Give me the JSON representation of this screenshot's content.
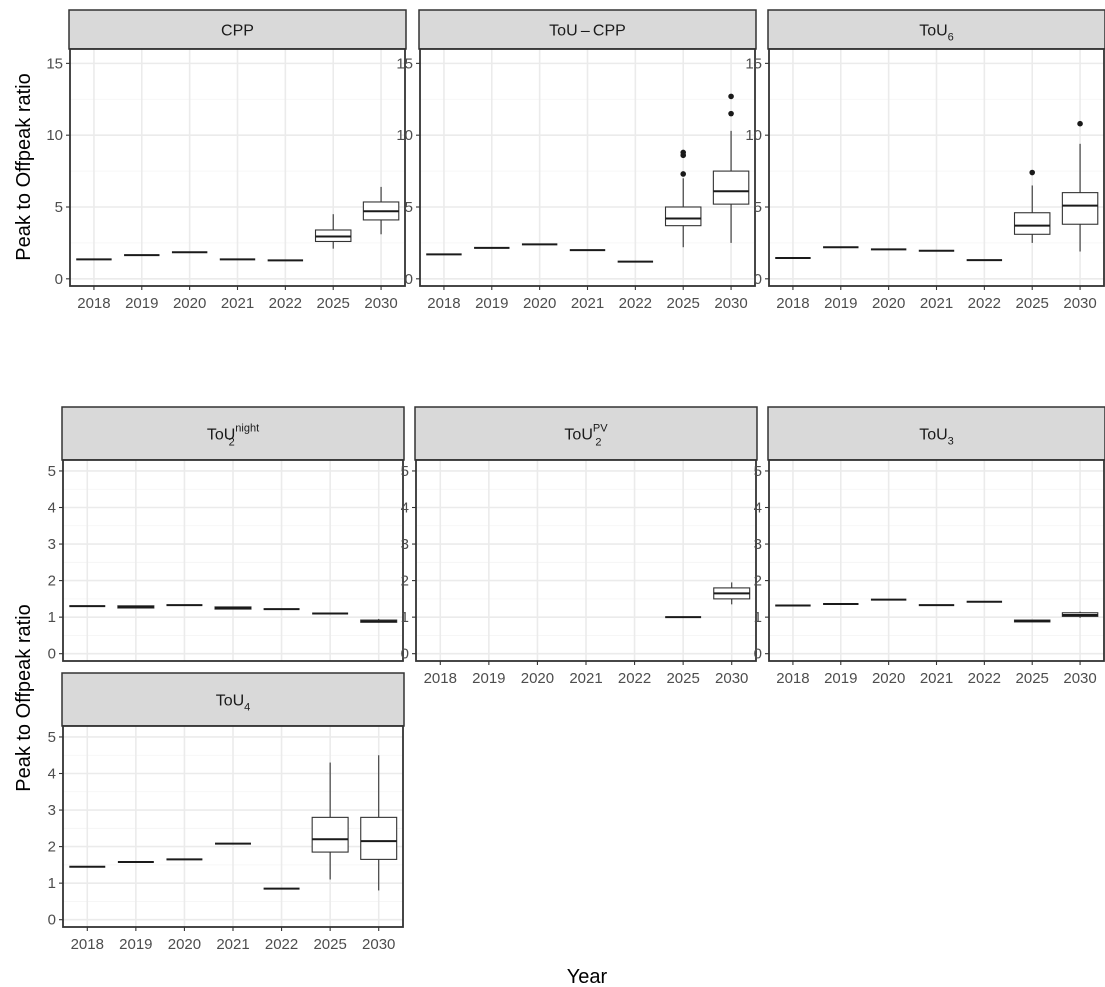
{
  "chart_data": {
    "type": "boxplot",
    "xlabel": "Year",
    "ylabel": "Peak to Offpeak ratio",
    "categories": [
      "2018",
      "2019",
      "2020",
      "2021",
      "2022",
      "2025",
      "2030"
    ],
    "rows": [
      {
        "ylim": [
          -0.5,
          16
        ],
        "yticks": [
          0,
          5,
          10,
          15
        ],
        "panels": [
          "CPP",
          "ToU-CPP",
          "ToU6"
        ]
      },
      {
        "ylim": [
          -0.2,
          5.3
        ],
        "yticks": [
          0,
          1,
          2,
          3,
          4,
          5
        ],
        "panels": [
          "ToU2night",
          "ToU2PV",
          "ToU3",
          "ToU4"
        ]
      }
    ],
    "panels": [
      {
        "id": "CPP",
        "title": "CPP",
        "title_sub": "",
        "title_sup": "",
        "show_xlabels": true,
        "boxes": [
          {
            "x": "2018",
            "min": 1.35,
            "q1": 1.35,
            "median": 1.35,
            "q3": 1.35,
            "max": 1.35,
            "outliers": []
          },
          {
            "x": "2019",
            "min": 1.65,
            "q1": 1.65,
            "median": 1.65,
            "q3": 1.65,
            "max": 1.65,
            "outliers": []
          },
          {
            "x": "2020",
            "min": 1.85,
            "q1": 1.85,
            "median": 1.85,
            "q3": 1.85,
            "max": 1.85,
            "outliers": []
          },
          {
            "x": "2021",
            "min": 1.35,
            "q1": 1.35,
            "median": 1.35,
            "q3": 1.35,
            "max": 1.35,
            "outliers": []
          },
          {
            "x": "2022",
            "min": 1.28,
            "q1": 1.28,
            "median": 1.28,
            "q3": 1.28,
            "max": 1.28,
            "outliers": []
          },
          {
            "x": "2025",
            "min": 2.1,
            "q1": 2.6,
            "median": 2.95,
            "q3": 3.4,
            "max": 4.5,
            "outliers": []
          },
          {
            "x": "2030",
            "min": 3.1,
            "q1": 4.1,
            "median": 4.7,
            "q3": 5.35,
            "max": 6.4,
            "outliers": []
          }
        ]
      },
      {
        "id": "ToU-CPP",
        "title": "ToU – CPP",
        "title_sub": "",
        "title_sup": "",
        "show_xlabels": true,
        "boxes": [
          {
            "x": "2018",
            "min": 1.7,
            "q1": 1.7,
            "median": 1.7,
            "q3": 1.7,
            "max": 1.7,
            "outliers": []
          },
          {
            "x": "2019",
            "min": 2.15,
            "q1": 2.15,
            "median": 2.15,
            "q3": 2.15,
            "max": 2.15,
            "outliers": []
          },
          {
            "x": "2020",
            "min": 2.4,
            "q1": 2.4,
            "median": 2.4,
            "q3": 2.4,
            "max": 2.4,
            "outliers": []
          },
          {
            "x": "2021",
            "min": 2.0,
            "q1": 2.0,
            "median": 2.0,
            "q3": 2.0,
            "max": 2.0,
            "outliers": []
          },
          {
            "x": "2022",
            "min": 1.2,
            "q1": 1.2,
            "median": 1.2,
            "q3": 1.2,
            "max": 1.2,
            "outliers": []
          },
          {
            "x": "2025",
            "min": 2.2,
            "q1": 3.7,
            "median": 4.2,
            "q3": 5.0,
            "max": 7.0,
            "outliers": [
              7.3,
              8.6,
              8.8
            ]
          },
          {
            "x": "2030",
            "min": 2.5,
            "q1": 5.2,
            "median": 6.1,
            "q3": 7.5,
            "max": 10.3,
            "outliers": [
              11.5,
              12.7
            ]
          }
        ]
      },
      {
        "id": "ToU6",
        "title": "ToU",
        "title_sub": "6",
        "title_sup": "",
        "show_xlabels": true,
        "boxes": [
          {
            "x": "2018",
            "min": 1.45,
            "q1": 1.45,
            "median": 1.45,
            "q3": 1.45,
            "max": 1.45,
            "outliers": []
          },
          {
            "x": "2019",
            "min": 2.2,
            "q1": 2.2,
            "median": 2.2,
            "q3": 2.2,
            "max": 2.2,
            "outliers": []
          },
          {
            "x": "2020",
            "min": 2.05,
            "q1": 2.05,
            "median": 2.05,
            "q3": 2.05,
            "max": 2.05,
            "outliers": []
          },
          {
            "x": "2021",
            "min": 1.95,
            "q1": 1.95,
            "median": 1.95,
            "q3": 1.95,
            "max": 1.95,
            "outliers": []
          },
          {
            "x": "2022",
            "min": 1.3,
            "q1": 1.3,
            "median": 1.3,
            "q3": 1.3,
            "max": 1.3,
            "outliers": []
          },
          {
            "x": "2025",
            "min": 2.5,
            "q1": 3.1,
            "median": 3.7,
            "q3": 4.6,
            "max": 6.5,
            "outliers": [
              7.4
            ]
          },
          {
            "x": "2030",
            "min": 1.9,
            "q1": 3.8,
            "median": 5.1,
            "q3": 6.0,
            "max": 9.4,
            "outliers": [
              10.8
            ]
          }
        ]
      },
      {
        "id": "ToU2night",
        "title": "ToU",
        "title_sub": "2",
        "title_sup": "night",
        "show_xlabels": false,
        "boxes": [
          {
            "x": "2018",
            "min": 1.3,
            "q1": 1.3,
            "median": 1.3,
            "q3": 1.3,
            "max": 1.3,
            "outliers": []
          },
          {
            "x": "2019",
            "min": 1.25,
            "q1": 1.25,
            "median": 1.28,
            "q3": 1.31,
            "max": 1.31,
            "outliers": []
          },
          {
            "x": "2020",
            "min": 1.33,
            "q1": 1.33,
            "median": 1.33,
            "q3": 1.33,
            "max": 1.33,
            "outliers": []
          },
          {
            "x": "2021",
            "min": 1.22,
            "q1": 1.22,
            "median": 1.25,
            "q3": 1.28,
            "max": 1.28,
            "outliers": []
          },
          {
            "x": "2022",
            "min": 1.22,
            "q1": 1.22,
            "median": 1.22,
            "q3": 1.22,
            "max": 1.22,
            "outliers": []
          },
          {
            "x": "2025",
            "min": 1.1,
            "q1": 1.1,
            "median": 1.1,
            "q3": 1.1,
            "max": 1.1,
            "outliers": []
          },
          {
            "x": "2030",
            "min": 0.85,
            "q1": 0.86,
            "median": 0.88,
            "q3": 0.92,
            "max": 0.95,
            "outliers": []
          }
        ]
      },
      {
        "id": "ToU2PV",
        "title": "ToU",
        "title_sub": "2",
        "title_sup": "PV",
        "show_xlabels": true,
        "boxes": [
          {
            "x": "2025",
            "min": 1.0,
            "q1": 1.0,
            "median": 1.0,
            "q3": 1.0,
            "max": 1.0,
            "outliers": []
          },
          {
            "x": "2030",
            "min": 1.35,
            "q1": 1.5,
            "median": 1.65,
            "q3": 1.8,
            "max": 1.95,
            "outliers": []
          }
        ]
      },
      {
        "id": "ToU3",
        "title": "ToU",
        "title_sub": "3",
        "title_sup": "",
        "show_xlabels": true,
        "boxes": [
          {
            "x": "2018",
            "min": 1.32,
            "q1": 1.32,
            "median": 1.32,
            "q3": 1.32,
            "max": 1.32,
            "outliers": []
          },
          {
            "x": "2019",
            "min": 1.36,
            "q1": 1.36,
            "median": 1.36,
            "q3": 1.36,
            "max": 1.36,
            "outliers": []
          },
          {
            "x": "2020",
            "min": 1.48,
            "q1": 1.48,
            "median": 1.48,
            "q3": 1.48,
            "max": 1.48,
            "outliers": []
          },
          {
            "x": "2021",
            "min": 1.33,
            "q1": 1.33,
            "median": 1.33,
            "q3": 1.33,
            "max": 1.33,
            "outliers": []
          },
          {
            "x": "2022",
            "min": 1.42,
            "q1": 1.42,
            "median": 1.42,
            "q3": 1.42,
            "max": 1.42,
            "outliers": []
          },
          {
            "x": "2025",
            "min": 0.86,
            "q1": 0.87,
            "median": 0.89,
            "q3": 0.92,
            "max": 0.93,
            "outliers": []
          },
          {
            "x": "2030",
            "min": 0.98,
            "q1": 1.02,
            "median": 1.06,
            "q3": 1.12,
            "max": 1.15,
            "outliers": []
          }
        ]
      },
      {
        "id": "ToU4",
        "title": "ToU",
        "title_sub": "4",
        "title_sup": "",
        "show_xlabels": true,
        "boxes": [
          {
            "x": "2018",
            "min": 1.45,
            "q1": 1.45,
            "median": 1.45,
            "q3": 1.45,
            "max": 1.45,
            "outliers": []
          },
          {
            "x": "2019",
            "min": 1.58,
            "q1": 1.58,
            "median": 1.58,
            "q3": 1.58,
            "max": 1.58,
            "outliers": []
          },
          {
            "x": "2020",
            "min": 1.65,
            "q1": 1.65,
            "median": 1.65,
            "q3": 1.65,
            "max": 1.65,
            "outliers": []
          },
          {
            "x": "2021",
            "min": 2.08,
            "q1": 2.08,
            "median": 2.08,
            "q3": 2.08,
            "max": 2.08,
            "outliers": []
          },
          {
            "x": "2022",
            "min": 0.85,
            "q1": 0.85,
            "median": 0.85,
            "q3": 0.85,
            "max": 0.85,
            "outliers": []
          },
          {
            "x": "2025",
            "min": 1.1,
            "q1": 1.85,
            "median": 2.2,
            "q3": 2.8,
            "max": 4.3,
            "outliers": []
          },
          {
            "x": "2030",
            "min": 0.8,
            "q1": 1.65,
            "median": 2.15,
            "q3": 2.8,
            "max": 4.5,
            "outliers": []
          }
        ]
      }
    ]
  }
}
